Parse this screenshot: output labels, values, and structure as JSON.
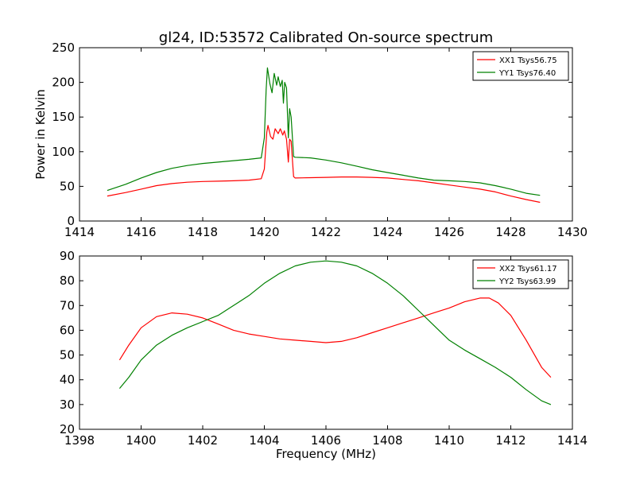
{
  "title": "gl24, ID:53572 Calibrated On-source spectrum",
  "chart_data": [
    {
      "type": "line",
      "title": "gl24, ID:53572 Calibrated On-source spectrum",
      "xlabel": "",
      "ylabel": "Power in Kelvin",
      "xlim": [
        1414,
        1430
      ],
      "ylim": [
        0,
        250
      ],
      "xticks": [
        1414,
        1416,
        1418,
        1420,
        1422,
        1424,
        1426,
        1428,
        1430
      ],
      "yticks": [
        0,
        50,
        100,
        150,
        200,
        250
      ],
      "grid": false,
      "legend_position": "top-right",
      "series": [
        {
          "name": "XX1 Tsys56.75",
          "color": "#ff0000",
          "points": [
            [
              1414.9,
              36
            ],
            [
              1415.5,
              41
            ],
            [
              1416.0,
              46
            ],
            [
              1416.5,
              51
            ],
            [
              1417.0,
              54
            ],
            [
              1417.5,
              56
            ],
            [
              1418.0,
              57
            ],
            [
              1418.5,
              57.5
            ],
            [
              1419.0,
              58
            ],
            [
              1419.5,
              59
            ],
            [
              1419.9,
              61
            ],
            [
              1420.0,
              75
            ],
            [
              1420.08,
              128
            ],
            [
              1420.12,
              138
            ],
            [
              1420.2,
              122
            ],
            [
              1420.28,
              118
            ],
            [
              1420.35,
              133
            ],
            [
              1420.45,
              126
            ],
            [
              1420.52,
              133
            ],
            [
              1420.6,
              124
            ],
            [
              1420.65,
              130
            ],
            [
              1420.72,
              118
            ],
            [
              1420.78,
              85
            ],
            [
              1420.82,
              118
            ],
            [
              1420.87,
              115
            ],
            [
              1420.95,
              64
            ],
            [
              1421.0,
              62
            ],
            [
              1421.5,
              62.5
            ],
            [
              1422.0,
              63
            ],
            [
              1422.5,
              63.5
            ],
            [
              1423.0,
              63.5
            ],
            [
              1423.5,
              63
            ],
            [
              1424.0,
              62
            ],
            [
              1424.5,
              60
            ],
            [
              1425.0,
              58
            ],
            [
              1425.5,
              55
            ],
            [
              1426.0,
              52
            ],
            [
              1426.5,
              49
            ],
            [
              1427.0,
              46
            ],
            [
              1427.5,
              42
            ],
            [
              1428.0,
              36
            ],
            [
              1428.5,
              31
            ],
            [
              1428.95,
              27
            ]
          ]
        },
        {
          "name": "YY1 Tsys76.40",
          "color": "#008000",
          "points": [
            [
              1414.9,
              44
            ],
            [
              1415.5,
              53
            ],
            [
              1416.0,
              62
            ],
            [
              1416.5,
              70
            ],
            [
              1417.0,
              76
            ],
            [
              1417.5,
              80
            ],
            [
              1418.0,
              83
            ],
            [
              1418.5,
              85
            ],
            [
              1419.0,
              87
            ],
            [
              1419.5,
              89
            ],
            [
              1419.9,
              91
            ],
            [
              1420.0,
              120
            ],
            [
              1420.06,
              190
            ],
            [
              1420.1,
              221
            ],
            [
              1420.18,
              198
            ],
            [
              1420.25,
              185
            ],
            [
              1420.32,
              213
            ],
            [
              1420.4,
              196
            ],
            [
              1420.45,
              208
            ],
            [
              1420.52,
              194
            ],
            [
              1420.58,
              203
            ],
            [
              1420.62,
              170
            ],
            [
              1420.66,
              200
            ],
            [
              1420.72,
              192
            ],
            [
              1420.78,
              120
            ],
            [
              1420.82,
              162
            ],
            [
              1420.87,
              150
            ],
            [
              1420.95,
              93
            ],
            [
              1421.0,
              92
            ],
            [
              1421.5,
              91
            ],
            [
              1422.0,
              88
            ],
            [
              1422.5,
              84
            ],
            [
              1423.0,
              79
            ],
            [
              1423.5,
              74
            ],
            [
              1424.0,
              70
            ],
            [
              1424.5,
              66
            ],
            [
              1425.0,
              62
            ],
            [
              1425.5,
              59
            ],
            [
              1426.0,
              58
            ],
            [
              1426.5,
              57
            ],
            [
              1427.0,
              55
            ],
            [
              1427.5,
              51
            ],
            [
              1428.0,
              46
            ],
            [
              1428.5,
              40
            ],
            [
              1428.95,
              37
            ]
          ]
        }
      ]
    },
    {
      "type": "line",
      "title": "",
      "xlabel": "Frequency (MHz)",
      "ylabel": "",
      "xlim": [
        1398,
        1414
      ],
      "ylim": [
        20,
        90
      ],
      "xticks": [
        1398,
        1400,
        1402,
        1404,
        1406,
        1408,
        1410,
        1412,
        1414
      ],
      "yticks": [
        20,
        30,
        40,
        50,
        60,
        70,
        80,
        90
      ],
      "grid": false,
      "legend_position": "top-right",
      "series": [
        {
          "name": "XX2 Tsys61.17",
          "color": "#ff0000",
          "points": [
            [
              1399.3,
              48
            ],
            [
              1399.6,
              54
            ],
            [
              1400.0,
              61
            ],
            [
              1400.5,
              65.5
            ],
            [
              1401.0,
              67
            ],
            [
              1401.5,
              66.5
            ],
            [
              1402.0,
              65
            ],
            [
              1402.5,
              62.5
            ],
            [
              1403.0,
              60
            ],
            [
              1403.5,
              58.5
            ],
            [
              1404.0,
              57.5
            ],
            [
              1404.5,
              56.5
            ],
            [
              1405.0,
              56
            ],
            [
              1405.5,
              55.5
            ],
            [
              1406.0,
              55
            ],
            [
              1406.5,
              55.5
            ],
            [
              1407.0,
              57
            ],
            [
              1407.5,
              59
            ],
            [
              1408.0,
              61
            ],
            [
              1408.5,
              63
            ],
            [
              1409.0,
              65
            ],
            [
              1409.5,
              67
            ],
            [
              1410.0,
              69
            ],
            [
              1410.5,
              71.5
            ],
            [
              1411.0,
              73
            ],
            [
              1411.3,
              73
            ],
            [
              1411.6,
              71
            ],
            [
              1412.0,
              66
            ],
            [
              1412.5,
              56
            ],
            [
              1413.0,
              45
            ],
            [
              1413.3,
              41
            ]
          ]
        },
        {
          "name": "YY2 Tsys63.99",
          "color": "#008000",
          "points": [
            [
              1399.3,
              36.5
            ],
            [
              1399.6,
              41
            ],
            [
              1400.0,
              48
            ],
            [
              1400.5,
              54
            ],
            [
              1401.0,
              58
            ],
            [
              1401.5,
              61
            ],
            [
              1402.0,
              63.5
            ],
            [
              1402.5,
              66
            ],
            [
              1403.0,
              70
            ],
            [
              1403.5,
              74
            ],
            [
              1404.0,
              79
            ],
            [
              1404.5,
              83
            ],
            [
              1405.0,
              86
            ],
            [
              1405.5,
              87.5
            ],
            [
              1406.0,
              88
            ],
            [
              1406.5,
              87.5
            ],
            [
              1407.0,
              86
            ],
            [
              1407.5,
              83
            ],
            [
              1408.0,
              79
            ],
            [
              1408.5,
              74
            ],
            [
              1409.0,
              68
            ],
            [
              1409.5,
              62
            ],
            [
              1410.0,
              56
            ],
            [
              1410.5,
              52
            ],
            [
              1411.0,
              48.5
            ],
            [
              1411.5,
              45
            ],
            [
              1412.0,
              41
            ],
            [
              1412.5,
              36
            ],
            [
              1413.0,
              31.5
            ],
            [
              1413.3,
              30
            ]
          ]
        }
      ]
    }
  ]
}
